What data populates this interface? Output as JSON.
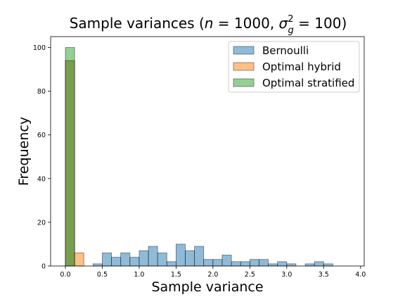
{
  "chart_data": {
    "type": "bar",
    "title": {
      "prefix": "Sample variances (",
      "n_label": "n",
      "equals_1": " = ",
      "n_value": "1000",
      "comma": ", ",
      "sigma": "σ",
      "sigma_sub": "g",
      "sigma_sup": "2",
      "equals_2": " = ",
      "sigma_value": "100",
      "suffix": ")"
    },
    "xlabel": "Sample variance",
    "ylabel": "Frequency",
    "xlim": [
      -0.2,
      4.05
    ],
    "ylim": [
      0,
      105
    ],
    "xticks": [
      "0.0",
      "0.5",
      "1.0",
      "1.5",
      "2.0",
      "2.5",
      "3.0",
      "3.5",
      "4.0"
    ],
    "yticks": [
      "0",
      "20",
      "40",
      "60",
      "80",
      "100"
    ],
    "legend_position": "top-right",
    "series": [
      {
        "name": "Bernoulli",
        "color": "#1f77b4",
        "bin_edges": [
          0.0,
          0.125,
          0.25,
          0.375,
          0.5,
          0.625,
          0.75,
          0.875,
          1.0,
          1.125,
          1.25,
          1.375,
          1.5,
          1.625,
          1.75,
          1.875,
          2.0,
          2.125,
          2.25,
          2.375,
          2.5,
          2.625,
          2.75,
          2.875,
          3.0,
          3.125,
          3.25,
          3.375,
          3.5,
          3.625
        ],
        "counts": [
          94,
          0,
          0,
          1,
          6,
          4,
          6,
          4,
          7,
          9,
          6,
          2,
          10,
          7,
          9,
          3,
          3,
          5,
          2,
          2,
          3,
          3,
          1,
          2,
          1,
          0,
          1,
          2,
          1
        ]
      },
      {
        "name": "Optimal hybrid",
        "color": "#ff7f0e",
        "bin_edges": [
          0.0,
          0.125,
          0.25
        ],
        "counts": [
          94,
          6
        ]
      },
      {
        "name": "Optimal stratified",
        "color": "#2ca02c",
        "bin_edges": [
          0.0,
          0.125
        ],
        "counts": [
          100
        ]
      }
    ]
  }
}
